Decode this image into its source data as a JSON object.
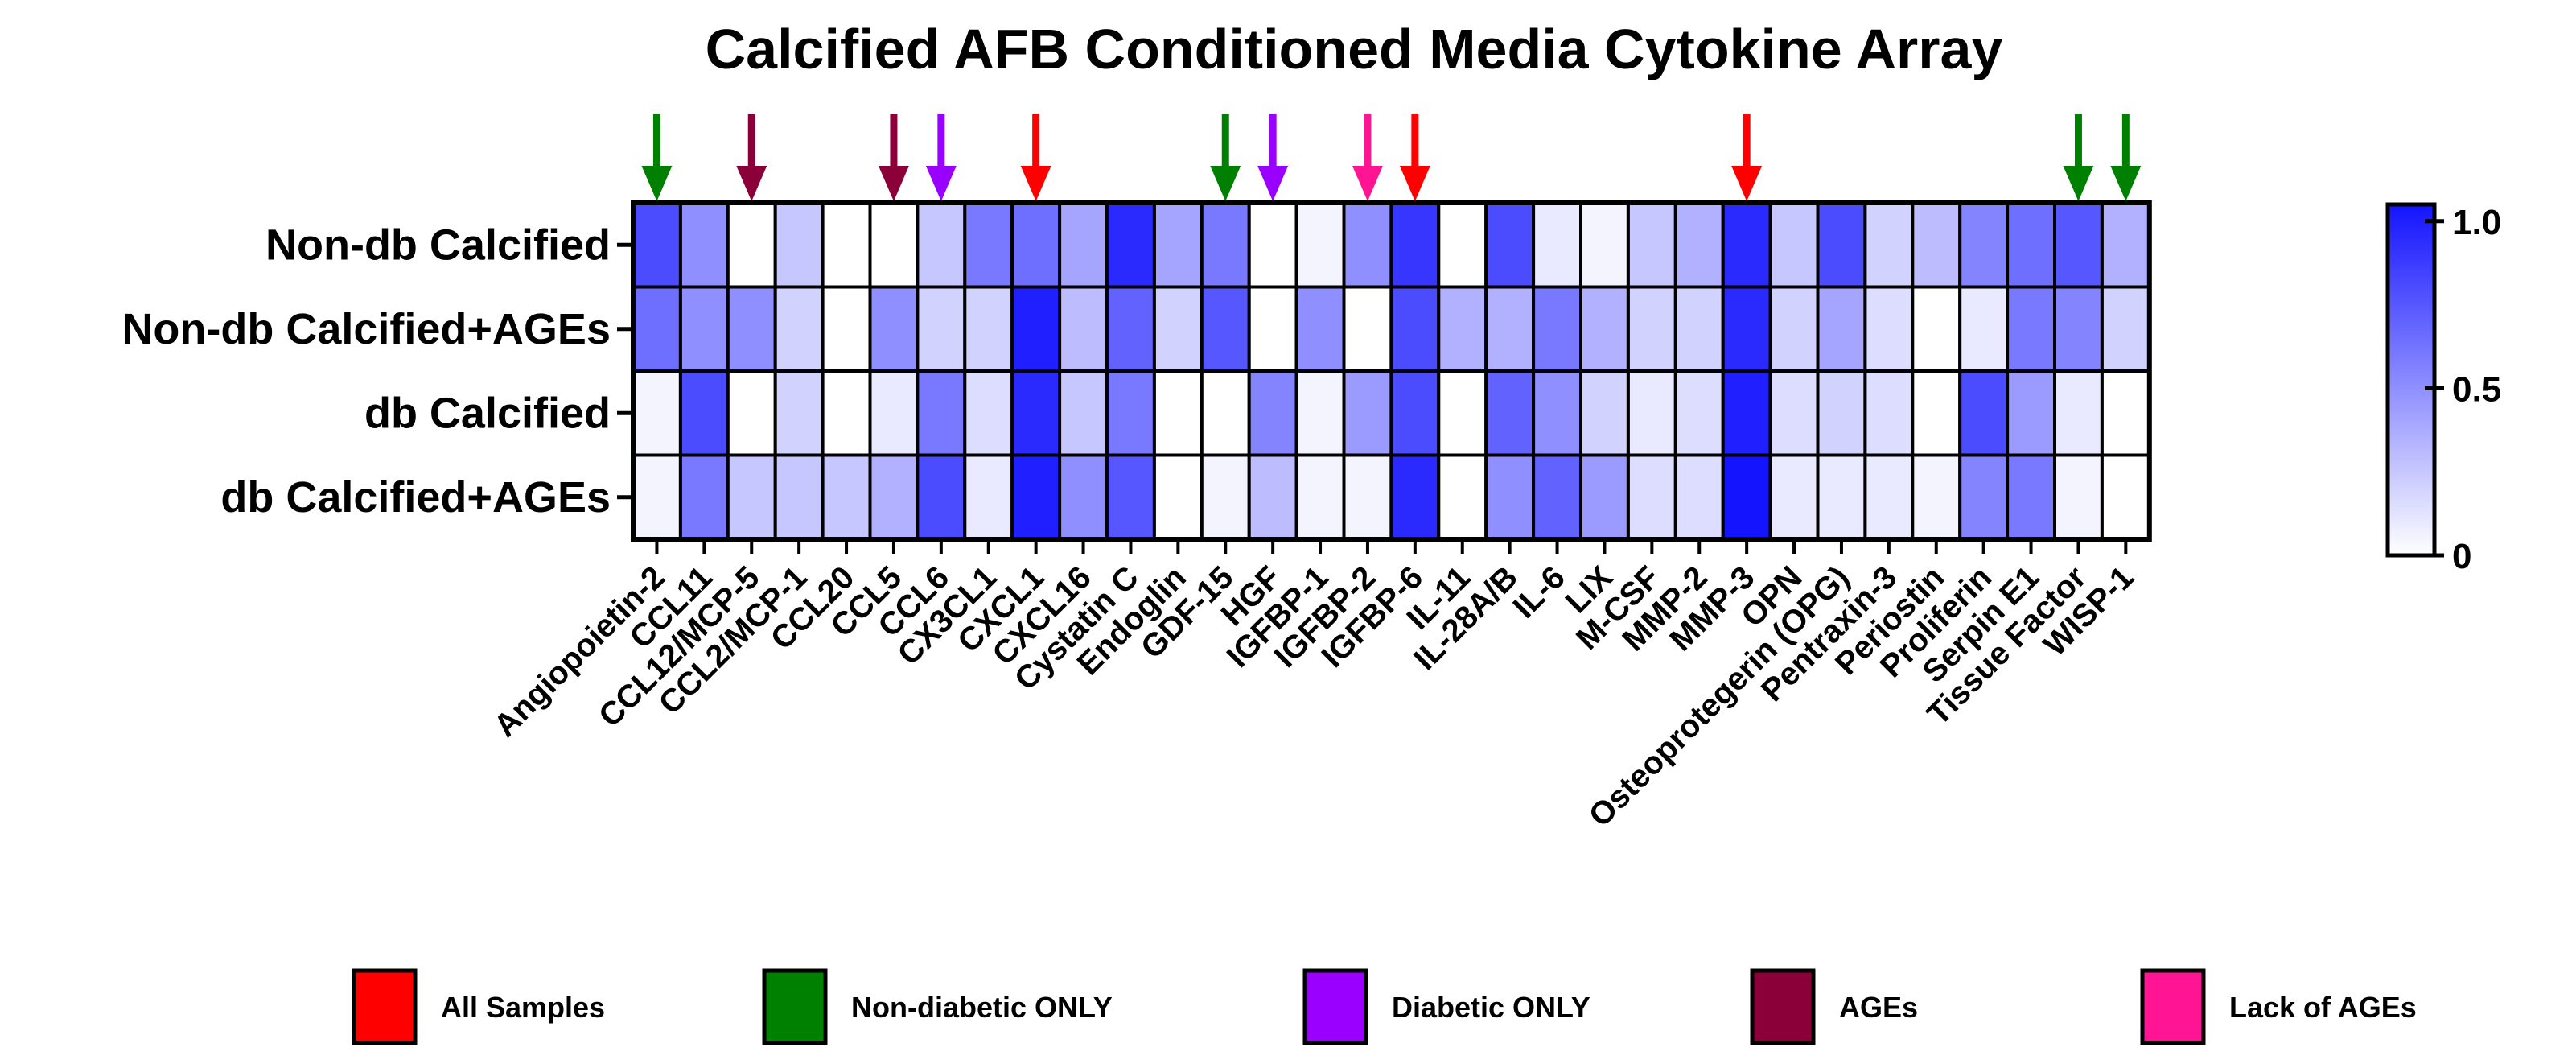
{
  "chart_data": {
    "type": "heatmap",
    "title": "Calcified AFB Conditioned Media Cytokine Array",
    "rows": [
      "Non-db Calcified",
      "Non-db Calcified+AGEs",
      "db Calcified",
      "db Calcified+AGEs"
    ],
    "columns": [
      "Angiopoietin-2",
      "CCL11",
      "CCL12/MCP-5",
      "CCL2/MCP-1",
      "CCL20",
      "CCL5",
      "CCL6",
      "CX3CL1",
      "CXCL1",
      "CXCL16",
      "Cystatin C",
      "Endoglin",
      "GDF-15",
      "HGF",
      "IGFBP-1",
      "IGFBP-2",
      "IGFBP-6",
      "IL-11",
      "IL-28A/B",
      "IL-6",
      "LIX",
      "M-CSF",
      "MMP-2",
      "MMP-3",
      "OPN",
      "Osteoprotegerin (OPG)",
      "Pentraxin-3",
      "Periostin",
      "Proliferin",
      "Serpin E1",
      "Tissue Factor",
      "WISP-1"
    ],
    "values": [
      [
        0.8,
        0.5,
        0.0,
        0.25,
        0.0,
        0.0,
        0.25,
        0.6,
        0.65,
        0.4,
        0.95,
        0.4,
        0.6,
        0.0,
        0.05,
        0.5,
        0.9,
        0.0,
        0.8,
        0.1,
        0.05,
        0.25,
        0.35,
        0.95,
        0.25,
        0.8,
        0.2,
        0.3,
        0.55,
        0.65,
        0.75,
        0.35
      ],
      [
        0.65,
        0.5,
        0.5,
        0.2,
        0.0,
        0.5,
        0.2,
        0.2,
        1.0,
        0.3,
        0.7,
        0.2,
        0.75,
        0.0,
        0.5,
        0.0,
        0.8,
        0.35,
        0.35,
        0.6,
        0.35,
        0.2,
        0.2,
        0.95,
        0.2,
        0.4,
        0.15,
        0.0,
        0.1,
        0.6,
        0.55,
        0.2
      ],
      [
        0.05,
        0.8,
        0.0,
        0.2,
        0.0,
        0.1,
        0.6,
        0.15,
        0.95,
        0.25,
        0.6,
        0.0,
        0.0,
        0.55,
        0.05,
        0.45,
        0.8,
        0.0,
        0.7,
        0.5,
        0.2,
        0.1,
        0.15,
        1.0,
        0.15,
        0.2,
        0.15,
        0.0,
        0.8,
        0.45,
        0.1,
        0.0
      ],
      [
        0.05,
        0.6,
        0.25,
        0.25,
        0.25,
        0.35,
        0.8,
        0.1,
        1.0,
        0.5,
        0.75,
        0.0,
        0.05,
        0.3,
        0.05,
        0.05,
        0.95,
        0.0,
        0.5,
        0.7,
        0.45,
        0.15,
        0.15,
        1.05,
        0.1,
        0.1,
        0.1,
        0.05,
        0.55,
        0.6,
        0.05,
        0.0
      ]
    ],
    "colorbar": {
      "min": 0,
      "max": 1.05,
      "ticks": [
        "0",
        "0.5",
        "1.0"
      ],
      "tick_values": [
        0,
        0.5,
        1.0
      ],
      "low_color": "#ffffff",
      "high_color": "#1414ff"
    },
    "arrows": [
      {
        "column": "Angiopoietin-2",
        "category": "Non-diabetic ONLY"
      },
      {
        "column": "CCL12/MCP-5",
        "category": "AGEs"
      },
      {
        "column": "CCL5",
        "category": "AGEs"
      },
      {
        "column": "CCL6",
        "category": "Diabetic ONLY"
      },
      {
        "column": "CXCL1",
        "category": "All Samples"
      },
      {
        "column": "GDF-15",
        "category": "Non-diabetic ONLY"
      },
      {
        "column": "HGF",
        "category": "Diabetic ONLY"
      },
      {
        "column": "IGFBP-2",
        "category": "Lack of AGEs"
      },
      {
        "column": "IGFBP-6",
        "category": "All Samples"
      },
      {
        "column": "MMP-3",
        "category": "All Samples"
      },
      {
        "column": "Tissue Factor",
        "category": "Non-diabetic ONLY"
      },
      {
        "column": "WISP-1",
        "category": "Non-diabetic ONLY"
      }
    ],
    "legend": [
      {
        "label": "All Samples",
        "color": "#ff0000"
      },
      {
        "label": "Non-diabetic ONLY",
        "color": "#008000"
      },
      {
        "label": "Diabetic ONLY",
        "color": "#9900ff"
      },
      {
        "label": "AGEs",
        "color": "#8b0039"
      },
      {
        "label": "Lack of AGEs",
        "color": "#ff1493"
      }
    ]
  }
}
